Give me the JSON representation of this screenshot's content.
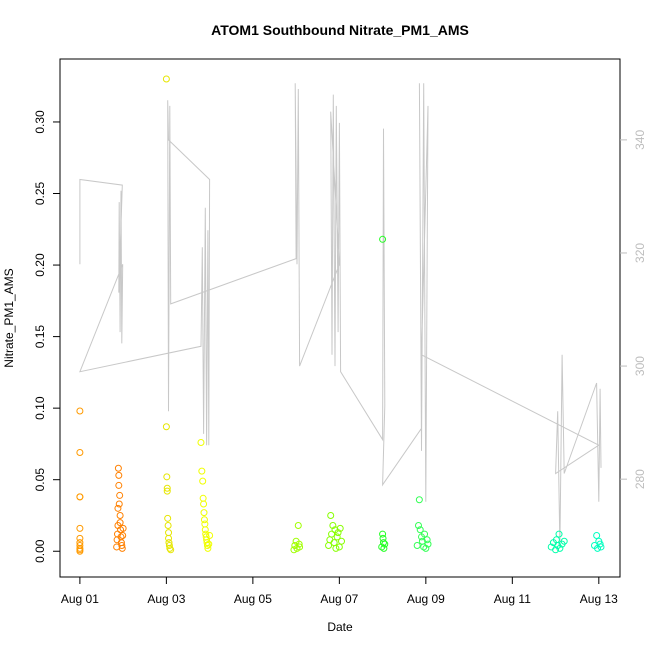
{
  "chart_data": {
    "type": "scatter",
    "title": "ATOM1 Southbound Nitrate_PM1_AMS",
    "x_label": "Date",
    "y_label": "Nitrate_PM1_AMS",
    "xlim": [
      0.54,
      13.49
    ],
    "xticks": [
      {
        "value": 1,
        "label": "Aug 01"
      },
      {
        "value": 3,
        "label": "Aug 03"
      },
      {
        "value": 5,
        "label": "Aug 05"
      },
      {
        "value": 7,
        "label": "Aug 07"
      },
      {
        "value": 9,
        "label": "Aug 09"
      },
      {
        "value": 11,
        "label": "Aug 11"
      },
      {
        "value": 13,
        "label": "Aug 13"
      }
    ],
    "ylim": [
      -0.018,
      0.344
    ],
    "yticks": [
      {
        "value": 0,
        "label": "0.00"
      },
      0.05,
      {
        "value": 0.1,
        "label": "0.10"
      },
      0.15,
      {
        "value": 0.2,
        "label": "0.20"
      },
      0.25,
      {
        "value": 0.3,
        "label": "0.30"
      }
    ],
    "y2lim": [
      262.7,
      354.3
    ],
    "y2ticks": [
      280,
      300,
      320,
      340
    ],
    "series": [
      {
        "color": "#ff9a00",
        "x": [
          1.0,
          1.0,
          1.0,
          1.0,
          1.0,
          1.0,
          1.0,
          1.0,
          1.0,
          1.0,
          1.0
        ],
        "values": [
          0.098,
          0.069,
          0.038,
          0.038,
          0.016,
          0.009,
          0.006,
          0.004,
          0.002,
          0.001,
          0
        ]
      },
      {
        "color": "#ff8000",
        "x": [
          1.85,
          1.86,
          1.87,
          1.88,
          1.88,
          1.89,
          1.9,
          1.9,
          1.91,
          1.92,
          1.93,
          1.93,
          1.94,
          1.95,
          1.96,
          1.97,
          1.98,
          1.99,
          2.0
        ],
        "values": [
          0.003,
          0.008,
          0.012,
          0.018,
          0.03,
          0.058,
          0.053,
          0.046,
          0.033,
          0.039,
          0.025,
          0.02,
          0.015,
          0.01,
          0.006,
          0.004,
          0.002,
          0.011,
          0.016
        ]
      },
      {
        "color": "#e6e600",
        "x": [
          3.0,
          3.0,
          3.01,
          3.02,
          3.02,
          3.03,
          3.04,
          3.05,
          3.05,
          3.06,
          3.07,
          3.08,
          3.1
        ],
        "values": [
          0.33,
          0.087,
          0.052,
          0.044,
          0.042,
          0.023,
          0.018,
          0.013,
          0.009,
          0.006,
          0.004,
          0.002,
          0.001
        ]
      },
      {
        "color": "#f0ff00",
        "x": [
          3.8,
          3.82,
          3.84,
          3.85,
          3.86,
          3.87,
          3.88,
          3.89,
          3.9,
          3.91,
          3.92,
          3.93,
          3.94,
          3.95,
          3.96,
          3.98,
          4.0
        ],
        "values": [
          0.076,
          0.056,
          0.049,
          0.037,
          0.033,
          0.027,
          0.022,
          0.019,
          0.015,
          0.012,
          0.01,
          0.008,
          0.006,
          0.004,
          0.002,
          0.005,
          0.011
        ]
      },
      {
        "color": "#a0ff00",
        "x": [
          5.95,
          5.97,
          6.0,
          6.02,
          6.05,
          6.07,
          6.08
        ],
        "values": [
          0.001,
          0.004,
          0.007,
          0.002,
          0.018,
          0.005,
          0.003
        ]
      },
      {
        "color": "#88ff00",
        "x": [
          6.75,
          6.78,
          6.8,
          6.82,
          6.85,
          6.88,
          6.9,
          6.92,
          6.95,
          6.97,
          7.0,
          7.02,
          7.05
        ],
        "values": [
          0.004,
          0.008,
          0.025,
          0.012,
          0.018,
          0.006,
          0.015,
          0.002,
          0.01,
          0.013,
          0.003,
          0.016,
          0.007
        ]
      },
      {
        "color": "#22ff22",
        "x": [
          7.98,
          8.0,
          8.0,
          8.01,
          8.02,
          8.03,
          8.05
        ],
        "values": [
          0.003,
          0.218,
          0.012,
          0.009,
          0.006,
          0.002,
          0.005
        ]
      },
      {
        "color": "#33ff55",
        "x": [
          8.8,
          8.83,
          8.85,
          8.87,
          8.9,
          8.92,
          8.95,
          8.97,
          9.0,
          9.03,
          9.05
        ],
        "values": [
          0.004,
          0.018,
          0.036,
          0.015,
          0.01,
          0.007,
          0.003,
          0.012,
          0.002,
          0.008,
          0.005
        ]
      },
      {
        "color": "#00ffaa",
        "x": [
          11.9,
          11.95,
          12.0,
          12.02,
          12.05,
          12.08,
          12.1,
          12.15,
          12.2
        ],
        "values": [
          0.003,
          0.006,
          0.001,
          0.008,
          0.004,
          0.012,
          0.002,
          0.005,
          0.007
        ]
      },
      {
        "color": "#00ffc0",
        "x": [
          12.9,
          12.95,
          12.97,
          13.0,
          13.03,
          13.05
        ],
        "values": [
          0.004,
          0.011,
          0.002,
          0.007,
          0.005,
          0.003
        ]
      },
      {
        "type": "line",
        "axis": "y2",
        "color": "#c8c8c8",
        "x": [
          1.0,
          1.0,
          1.98,
          1.9,
          1.91,
          1.93,
          1.95,
          1.97,
          1.99,
          1.0,
          3.8,
          3.83,
          3.86,
          3.9,
          3.93,
          3.96,
          3.98,
          4.0,
          3.05,
          3.03,
          3.05,
          3.08,
          3.1,
          6.0,
          5.98,
          6.02,
          6.05,
          6.08,
          7.0,
          6.8,
          6.83,
          6.86,
          6.9,
          6.93,
          6.97,
          7.0,
          7.03,
          8.0,
          8.02,
          8.05,
          8.0,
          8.9,
          8.85,
          8.9,
          8.95,
          9.0,
          9.05,
          8.9,
          13.0,
          12.0,
          12.05,
          12.1,
          12.15,
          12.2,
          12.95,
          13.0,
          13.03,
          13.05
        ],
        "values": [
          318,
          333,
          332,
          313,
          329,
          306,
          331,
          304,
          318,
          299,
          303.5,
          321,
          288,
          328,
          286,
          324,
          286,
          333,
          340,
          347,
          292,
          346,
          311,
          319,
          350,
          318,
          349,
          300,
          318,
          345,
          302,
          348,
          300,
          346,
          306,
          343,
          299,
          287,
          342,
          293,
          279,
          289,
          350,
          285,
          350,
          276,
          346,
          302,
          286,
          281,
          292,
          268,
          302,
          281,
          297,
          276,
          296,
          282
        ]
      }
    ]
  }
}
